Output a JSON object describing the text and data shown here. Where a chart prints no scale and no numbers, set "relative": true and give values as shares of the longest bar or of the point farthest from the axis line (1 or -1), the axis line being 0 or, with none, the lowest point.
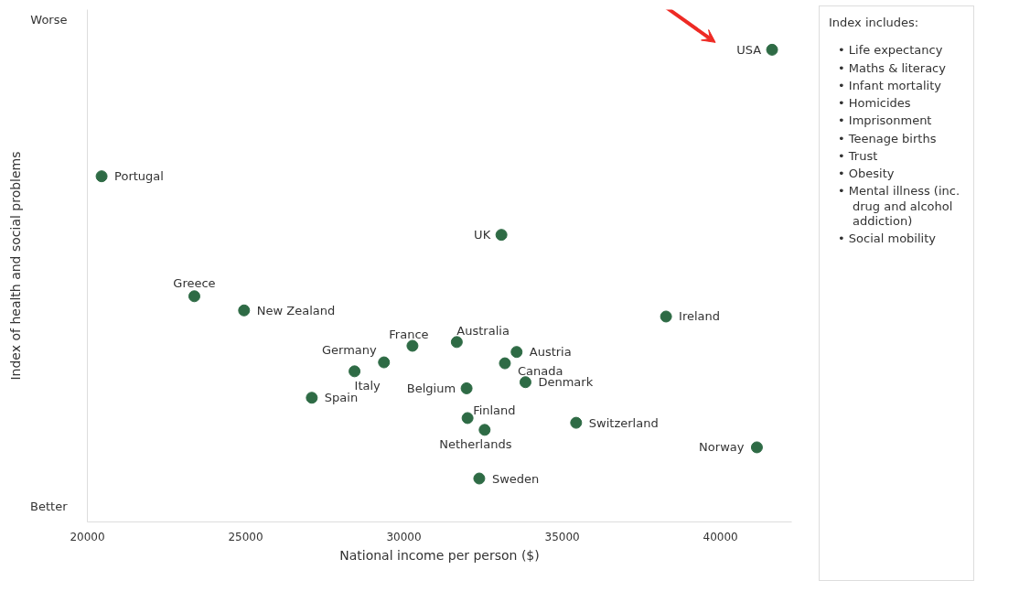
{
  "chart_data": {
    "type": "scatter",
    "relative": true,
    "xlabel": "National income per person ($)",
    "ylabel": "Index of health and social problems",
    "xlim": [
      20000,
      42250
    ],
    "xticks": [
      20000,
      25000,
      30000,
      35000,
      40000
    ],
    "grid": false,
    "marker": "circle",
    "series": [
      {
        "color": "#2e6b45",
        "x": [
          41630,
          20450,
          33080,
          23380,
          24950,
          38280,
          30270,
          31670,
          29370,
          33560,
          33190,
          28440,
          31980,
          33840,
          27090,
          32010,
          35440,
          32550,
          41150,
          32380
        ],
        "values": [
          1,
          0.732,
          0.608,
          0.478,
          0.448,
          0.435,
          0.373,
          0.381,
          0.338,
          0.36,
          0.336,
          0.319,
          0.283,
          0.296,
          0.263,
          0.22,
          0.21,
          0.195,
          0.158,
          0.092
        ]
      }
    ],
    "annotations": [
      {
        "text": "USA",
        "x": 41630,
        "y": 1
      },
      {
        "text": "Portugal",
        "x": 20450,
        "y": 0.732
      },
      {
        "text": "UK",
        "x": 33080,
        "y": 0.608
      },
      {
        "text": "Greece",
        "x": 23380,
        "y": 0.478
      },
      {
        "text": "New Zealand",
        "x": 24950,
        "y": 0.448
      },
      {
        "text": "Ireland",
        "x": 38280,
        "y": 0.435
      },
      {
        "text": "France",
        "x": 30270,
        "y": 0.373
      },
      {
        "text": "Australia",
        "x": 31670,
        "y": 0.381
      },
      {
        "text": "Germany",
        "x": 29370,
        "y": 0.338
      },
      {
        "text": "Austria",
        "x": 33560,
        "y": 0.36
      },
      {
        "text": "Canada",
        "x": 33190,
        "y": 0.336
      },
      {
        "text": "Italy",
        "x": 28440,
        "y": 0.319
      },
      {
        "text": "Belgium",
        "x": 31980,
        "y": 0.283
      },
      {
        "text": "Denmark",
        "x": 33840,
        "y": 0.296
      },
      {
        "text": "Spain",
        "x": 27090,
        "y": 0.263
      },
      {
        "text": "Finland",
        "x": 32010,
        "y": 0.22
      },
      {
        "text": "Switzerland",
        "x": 35440,
        "y": 0.21
      },
      {
        "text": "Netherlands",
        "x": 32550,
        "y": 0.195
      },
      {
        "text": "Norway",
        "x": 41150,
        "y": 0.158
      },
      {
        "text": "Sweden",
        "x": 32380,
        "y": 0.092
      },
      "Worse",
      "Better",
      "Index includes:",
      "• Life expectancy",
      "• Maths & literacy",
      "• Infant mortality",
      "• Homicides",
      "• Imprisonment",
      "• Teenage births",
      "• Trust",
      "• Obesity",
      "• Mental illness (inc. drug and alcohol addiction)",
      "• Social mobility"
    ]
  }
}
